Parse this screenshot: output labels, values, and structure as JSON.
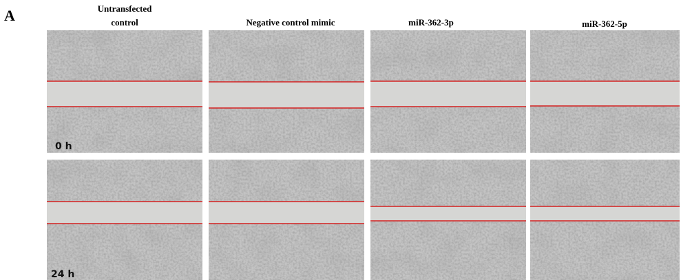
{
  "panel_label": "A",
  "columns": [
    [
      "Untransfected",
      "control"
    ],
    [
      "Negative control mimic"
    ],
    [
      "miR-362-3p"
    ],
    [
      "miR-362-5p"
    ]
  ],
  "rows": [
    "0 h",
    "24 h"
  ]
}
